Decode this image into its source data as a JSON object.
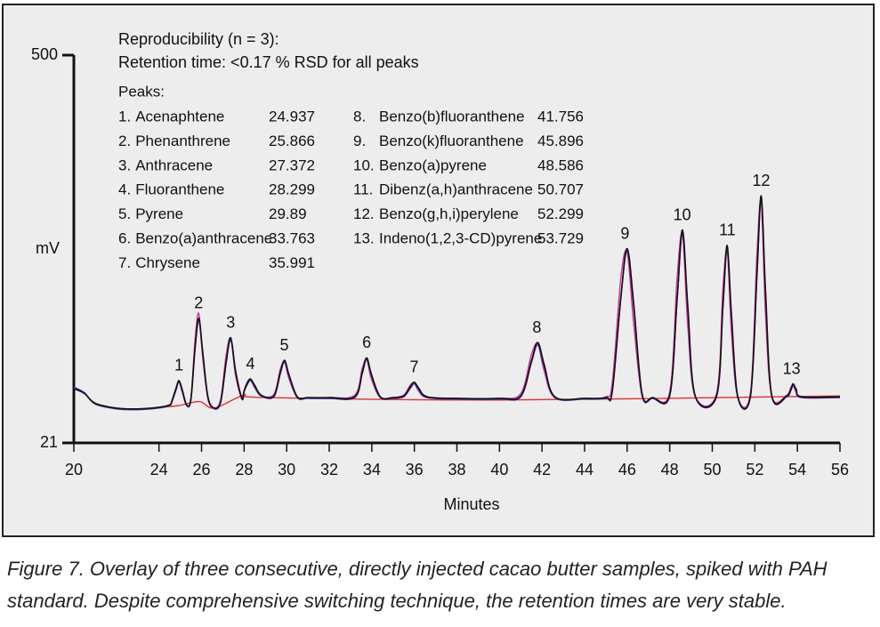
{
  "chart_data": {
    "type": "line",
    "notes": [
      "Reproducibility (n = 3):",
      "Retention time: <0.17 % RSD for all peaks",
      "Peaks:"
    ],
    "ylabel": "mV",
    "xlabel": "Minutes",
    "caption": [
      "Figure 7. Overlay of three consecutive, directly injected cacao butter samples, spiked with PAH",
      "standard. Despite comprehensive switching technique, the retention times are very stable."
    ],
    "xlim": [
      20,
      56
    ],
    "xticks": [
      20,
      24,
      26,
      28,
      30,
      32,
      34,
      36,
      38,
      40,
      42,
      44,
      46,
      48,
      50,
      52,
      54,
      56
    ],
    "ylim": [
      21,
      500
    ],
    "yticks": [
      21,
      500
    ],
    "peaks": [
      {
        "label": "1",
        "index": "1.",
        "name": "Acenaphtene",
        "time": 24.937
      },
      {
        "label": "2",
        "index": "2.",
        "name": "Phenanthrene",
        "time": 25.866
      },
      {
        "label": "3",
        "index": "3.",
        "name": "Anthracene",
        "time": 27.372
      },
      {
        "label": "4",
        "index": "4.",
        "name": "Fluoranthene",
        "time": 28.299
      },
      {
        "label": "5",
        "index": "5.",
        "name": "Pyrene",
        "time": 29.89
      },
      {
        "label": "6",
        "index": "6.",
        "name": "Benzo(a)anthracene",
        "time": 33.763
      },
      {
        "label": "7",
        "index": "7.",
        "name": "Chrysene",
        "time": 35.991
      },
      {
        "label": "8",
        "index": "8.",
        "name": "Benzo(b)fluoranthene",
        "time": 41.756
      },
      {
        "label": "9",
        "index": "9.",
        "name": "Benzo(k)fluoranthene",
        "time": 45.896
      },
      {
        "label": "10",
        "index": "10.",
        "name": "Benzo(a)pyrene",
        "time": 48.586
      },
      {
        "label": "11",
        "index": "11.",
        "name": "Dibenz(a,h)anthracene",
        "time": 50.707
      },
      {
        "label": "12",
        "index": "12.",
        "name": "Benzo(g,h,i)perylene",
        "time": 52.299
      },
      {
        "label": "13",
        "index": "13.",
        "name": "Indeno(1,2,3-CD)pyrene",
        "time": 53.729
      }
    ],
    "x": [
      20,
      20.5,
      21,
      22,
      23,
      24,
      24.5,
      24.6,
      24.8,
      24.94,
      25.1,
      25.3,
      25.5,
      25.7,
      25.87,
      26.05,
      26.3,
      26.6,
      26.9,
      27.15,
      27.37,
      27.6,
      27.9,
      28.0,
      28.15,
      28.3,
      28.5,
      28.8,
      29.4,
      29.7,
      29.9,
      30.1,
      30.5,
      31,
      32,
      33.2,
      33.55,
      33.76,
      33.98,
      34.4,
      35,
      35.5,
      35.8,
      35.99,
      36.2,
      36.6,
      38,
      40,
      41.0,
      41.5,
      41.8,
      42.1,
      42.6,
      44,
      45,
      45.3,
      45.7,
      46.0,
      46.3,
      46.7,
      47.2,
      48.0,
      48.35,
      48.6,
      48.85,
      49.2,
      50.2,
      50.5,
      50.7,
      50.9,
      51.2,
      51.8,
      52.1,
      52.3,
      52.5,
      52.8,
      53.5,
      53.7,
      53.8,
      53.95,
      54.2,
      56
    ],
    "series": [
      {
        "color": "#111111",
        "values": [
          88,
          82,
          70,
          64,
          63,
          65,
          68,
          72,
          88,
          98,
          86,
          68,
          75,
          140,
          175,
          135,
          78,
          64,
          72,
          120,
          151,
          110,
          76,
          85,
          95,
          100,
          92,
          80,
          79,
          108,
          123,
          106,
          78,
          77,
          77,
          78,
          108,
          126,
          106,
          78,
          77,
          79,
          90,
          96,
          89,
          78,
          76,
          76,
          79,
          122,
          145,
          118,
          78,
          76,
          77,
          85,
          200,
          261,
          195,
          82,
          77,
          80,
          200,
          284,
          190,
          79,
          79,
          190,
          265,
          180,
          78,
          80,
          230,
          326,
          210,
          79,
          79,
          88,
          94,
          87,
          78,
          78
        ]
      },
      {
        "color": "#3a3aa8",
        "values": [
          90,
          83,
          69,
          63,
          62,
          64,
          67,
          71,
          86,
          96,
          84,
          67,
          74,
          138,
          172,
          132,
          77,
          63,
          71,
          118,
          148,
          108,
          75,
          84,
          93,
          98,
          90,
          79,
          78,
          106,
          121,
          104,
          77,
          76,
          76,
          77,
          106,
          124,
          104,
          77,
          76,
          78,
          88,
          94,
          87,
          77,
          75,
          75,
          78,
          120,
          142,
          115,
          77,
          75,
          76,
          84,
          198,
          258,
          190,
          80,
          76,
          79,
          198,
          280,
          186,
          78,
          78,
          188,
          261,
          176,
          77,
          79,
          228,
          322,
          206,
          78,
          78,
          86,
          92,
          85,
          77,
          77
        ]
      },
      {
        "color": "#d0309a",
        "values": [
          89,
          82,
          69,
          64,
          63,
          65,
          68,
          73,
          89,
          97,
          83,
          67,
          77,
          150,
          181,
          128,
          75,
          64,
          75,
          128,
          150,
          104,
          75,
          86,
          96,
          99,
          89,
          79,
          81,
          112,
          121,
          101,
          77,
          77,
          77,
          80,
          113,
          124,
          100,
          77,
          77,
          80,
          92,
          95,
          85,
          77,
          76,
          76,
          82,
          130,
          143,
          110,
          77,
          76,
          78,
          95,
          224,
          256,
          170,
          79,
          77,
          84,
          226,
          278,
          165,
          78,
          82,
          212,
          258,
          158,
          77,
          84,
          256,
          318,
          180,
          78,
          80,
          90,
          92,
          83,
          77,
          77
        ]
      },
      {
        "color": "#e03030",
        "x": [
          24.0,
          24.9,
          25.9,
          26.6,
          28.0,
          29.0,
          40,
          56
        ],
        "values": [
          65,
          67,
          72,
          64,
          80,
          77,
          74,
          79
        ]
      }
    ]
  }
}
